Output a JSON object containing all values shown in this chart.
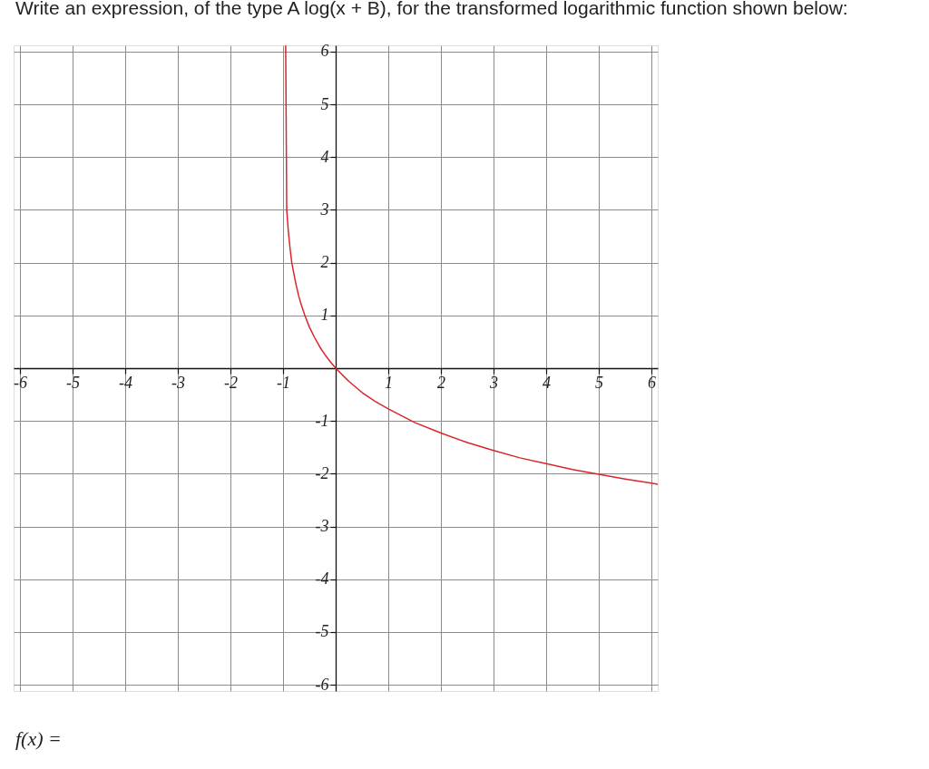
{
  "chart_data": {
    "type": "line",
    "title": "Write an expression, of the type A log(x + B), for the transformed logarithmic function shown below:",
    "annotations": [
      "f(x) ="
    ],
    "x": [
      -0.95,
      -0.93,
      -0.9,
      -0.87,
      -0.834,
      -0.8,
      -0.75,
      -0.7,
      -0.65,
      -0.586,
      -0.5,
      -0.4,
      -0.3,
      -0.2,
      -0.1,
      0,
      0.25,
      0.5,
      0.75,
      1,
      1.5,
      2,
      2.5,
      3,
      3.5,
      4,
      4.5,
      5,
      5.5,
      6,
      6.12
    ],
    "series": [
      {
        "color": "#d9262c",
        "values": [
          6.11,
          3.0,
          2.6,
          2.3,
          2.0,
          1.82,
          1.57,
          1.36,
          1.19,
          1.0,
          0.78,
          0.58,
          0.4,
          0.25,
          0.12,
          0,
          -0.25,
          -0.46,
          -0.63,
          -0.77,
          -1.03,
          -1.23,
          -1.41,
          -1.56,
          -1.7,
          -1.81,
          -1.92,
          -2.01,
          -2.1,
          -2.18,
          -2.2
        ]
      }
    ],
    "xlim": [
      -6.12,
      6.12
    ],
    "ylim": [
      -6.12,
      6.12
    ],
    "xticks": [
      -6,
      -5,
      -4,
      -3,
      -2,
      -1,
      1,
      2,
      3,
      4,
      5,
      6
    ],
    "yticks": [
      -6,
      -5,
      -4,
      -3,
      -2,
      -1,
      1,
      2,
      3,
      4,
      5,
      6
    ],
    "grid": true,
    "marker": "none",
    "line_style": "solid"
  }
}
